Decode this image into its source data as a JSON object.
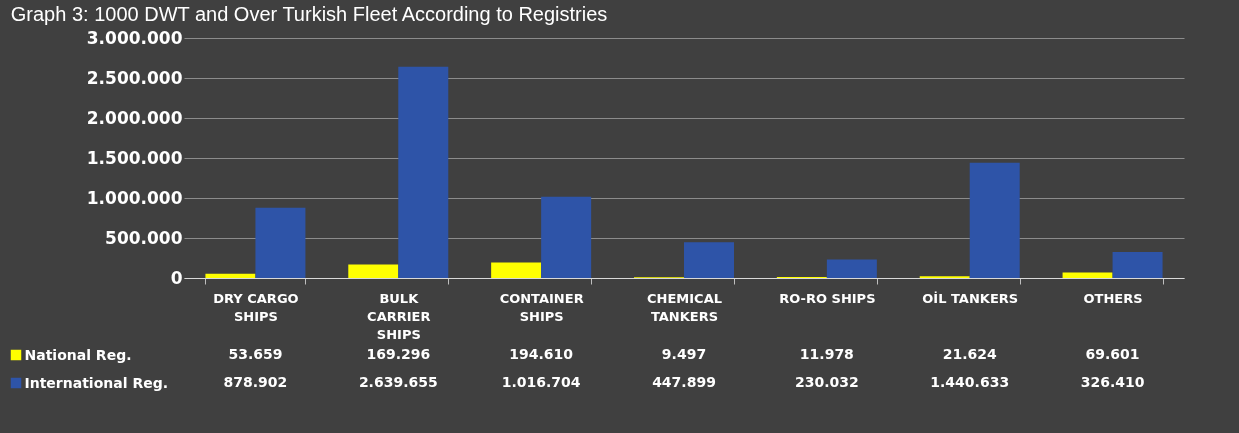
{
  "chart_data": {
    "type": "bar",
    "title": "Graph 3: 1000 DWT and Over Turkish Fleet According to Registries",
    "categories": [
      "DRY CARGO SHIPS",
      "BULK CARRIER SHIPS",
      "CONTAINER SHIPS",
      "CHEMICAL TANKERS",
      "RO-RO SHIPS",
      "OİL TANKERS",
      "OTHERS"
    ],
    "series": [
      {
        "name": "National Reg.",
        "color": "#ffff00",
        "values": [
          53659,
          169296,
          194610,
          9497,
          11978,
          21624,
          69601
        ],
        "value_labels": [
          "53.659",
          "169.296",
          "194.610",
          "9.497",
          "11.978",
          "21.624",
          "69.601"
        ]
      },
      {
        "name": "International Reg.",
        "color": "#2e54a8",
        "values": [
          878902,
          2639655,
          1016704,
          447899,
          230032,
          1440633,
          326410
        ],
        "value_labels": [
          "878.902",
          "2.639.655",
          "1.016.704",
          "447.899",
          "230.032",
          "1.440.633",
          "326.410"
        ]
      }
    ],
    "ylim": [
      0,
      3000000
    ],
    "yticks": [
      0,
      {
        "value": 500000,
        "label": "500.000"
      },
      {
        "value": 1000000,
        "label": "1.000.000"
      },
      {
        "value": 1500000,
        "label": "1.500.000"
      },
      {
        "value": 2000000,
        "label": "2.000.000"
      },
      {
        "value": 2500000,
        "label": "2.500.000"
      },
      {
        "value": 3000000,
        "label": "3.000.000"
      }
    ],
    "grid": "y",
    "legend": "bottom left"
  }
}
